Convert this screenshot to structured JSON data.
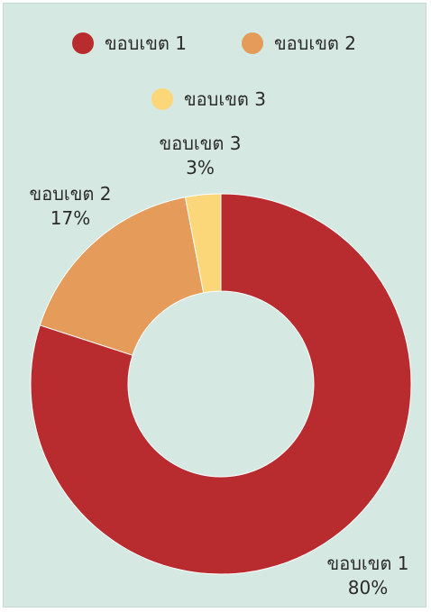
{
  "chart_data": {
    "type": "pie",
    "variant": "donut",
    "title": "",
    "categories": [
      "ขอบเขต 1",
      "ขอบเขต 2",
      "ขอบเขต 3"
    ],
    "values": [
      80,
      17,
      3
    ],
    "value_labels": [
      "80%",
      "17%",
      "3%"
    ],
    "colors": [
      "#b82c2f",
      "#e59c5b",
      "#fbd77a"
    ],
    "legend": {
      "placement": "top",
      "entries": [
        "ขอบเขต 1",
        "ขอบเขต 2",
        "ขอบเขต 3"
      ]
    },
    "background": "#d5e8e1"
  }
}
